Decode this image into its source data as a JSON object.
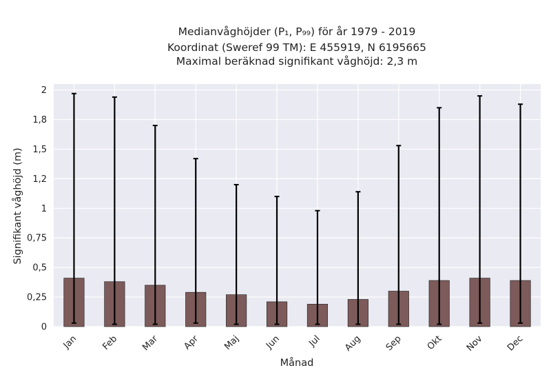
{
  "chart_data": {
    "type": "bar",
    "title_lines": [
      "Medianvåghöjder (P₁, P₉₉) för år 1979 - 2019",
      "Koordinat (Sweref 99 TM): E 455919, N 6195665",
      "Maximal beräknad signifikant våghöjd: 2,3 m"
    ],
    "xlabel": "Månad",
    "ylabel": "Signifikant våghöjd (m)",
    "categories": [
      "Jan",
      "Feb",
      "Mar",
      "Apr",
      "Maj",
      "Jun",
      "Jul",
      "Aug",
      "Sep",
      "Okt",
      "Nov",
      "Dec"
    ],
    "values": [
      0.41,
      0.38,
      0.35,
      0.29,
      0.27,
      0.21,
      0.19,
      0.23,
      0.3,
      0.39,
      0.41,
      0.39
    ],
    "error_low": [
      0.03,
      0.02,
      0.02,
      0.03,
      0.02,
      0.02,
      0.02,
      0.02,
      0.02,
      0.02,
      0.03,
      0.03
    ],
    "error_high": [
      1.97,
      1.94,
      1.7,
      1.42,
      1.2,
      1.1,
      0.98,
      1.14,
      1.53,
      1.85,
      1.95,
      1.88
    ],
    "ylim": [
      0,
      2.05
    ],
    "yticks": [
      0,
      0.25,
      0.5,
      0.75,
      1,
      1.25,
      1.5,
      1.75,
      2
    ],
    "ytick_labels": [
      "0",
      "0,25",
      "0,5",
      "0,75",
      "1",
      "1,2",
      "1,5",
      "1,8",
      "2"
    ],
    "grid": true,
    "bar_color": "#7d5b5b",
    "background_color": "#eaeaf2",
    "errorbar_color": "#000000"
  }
}
